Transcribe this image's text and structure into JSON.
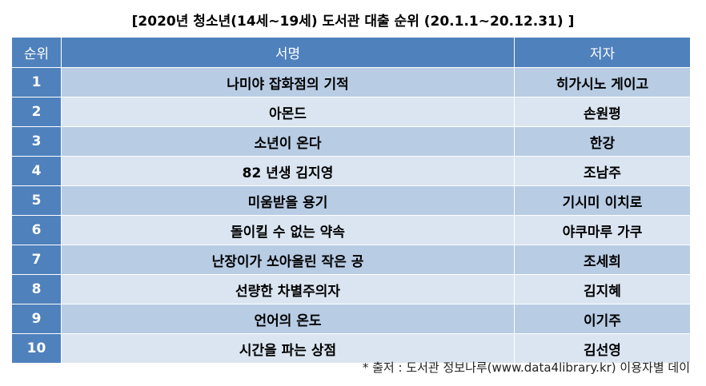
{
  "title": "[2020년 청소년(14세~19세) 도서관 대출 순위 (20.1.1~20.12.31) ]",
  "headers": {
    "rank": "순위",
    "book": "서명",
    "author": "저자"
  },
  "rows": [
    {
      "rank": "1",
      "book": "나미야 잡화점의 기적",
      "author": "히가시노 게이고"
    },
    {
      "rank": "2",
      "book": "아몬드",
      "author": "손원평"
    },
    {
      "rank": "3",
      "book": "소년이 온다",
      "author": "한강"
    },
    {
      "rank": "4",
      "book": "82 년생 김지영",
      "author": "조남주"
    },
    {
      "rank": "5",
      "book": "미움받을 용기",
      "author": "기시미 이치로"
    },
    {
      "rank": "6",
      "book": "돌이킬 수 없는 약속",
      "author": "야쿠마루 가쿠"
    },
    {
      "rank": "7",
      "book": "난장이가 쏘아올린 작은 공",
      "author": "조세희"
    },
    {
      "rank": "8",
      "book": "선량한 차별주의자",
      "author": "김지혜"
    },
    {
      "rank": "9",
      "book": "언어의 온도",
      "author": "이기주"
    },
    {
      "rank": "10",
      "book": "시간을 파는 상점",
      "author": "김선영"
    }
  ],
  "source": "* 출저 : 도서관 정보나루(www.data4library.kr) 이용자별 데이",
  "colors": {
    "header_bg": "#4f81bd",
    "row_odd_bg": "#b8cce4",
    "row_even_bg": "#dbe5f1"
  }
}
